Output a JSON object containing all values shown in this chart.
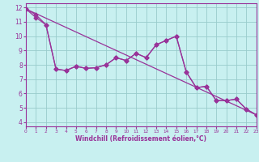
{
  "xlabel": "Windchill (Refroidissement éolien,°C)",
  "bg_color": "#c8f0f0",
  "line_color": "#993399",
  "grid_color": "#99cccc",
  "x_ticks": [
    0,
    1,
    2,
    3,
    4,
    5,
    6,
    7,
    8,
    9,
    10,
    11,
    12,
    13,
    14,
    15,
    16,
    17,
    18,
    19,
    20,
    21,
    22,
    23
  ],
  "y_ticks": [
    4,
    5,
    6,
    7,
    8,
    9,
    10,
    11,
    12
  ],
  "xlim": [
    0,
    23
  ],
  "ylim": [
    3.7,
    12.3
  ],
  "curve1_x": [
    0,
    1,
    2,
    3,
    4,
    5,
    6,
    7,
    8,
    9,
    10,
    11,
    12,
    13,
    14,
    15,
    16,
    17,
    18,
    19,
    20,
    21,
    22,
    23
  ],
  "curve1_y": [
    11.9,
    11.5,
    10.8,
    7.7,
    7.6,
    7.9,
    7.75,
    7.8,
    8.0,
    8.5,
    8.3,
    8.8,
    8.5,
    9.4,
    9.7,
    10.0,
    7.5,
    6.4,
    6.5,
    5.5,
    5.5,
    5.6,
    4.9,
    4.5
  ],
  "curve2_x": [
    0,
    1,
    2,
    3,
    4,
    5,
    6,
    7,
    8,
    9,
    10,
    11,
    12,
    13,
    14,
    15,
    16,
    17,
    18,
    19,
    20,
    21,
    22,
    23
  ],
  "curve2_y": [
    11.9,
    11.3,
    10.8,
    7.7,
    7.6,
    7.9,
    7.75,
    7.8,
    8.0,
    8.5,
    8.3,
    8.8,
    8.5,
    9.4,
    9.7,
    10.0,
    7.5,
    6.4,
    6.5,
    5.5,
    5.5,
    5.6,
    4.9,
    4.5
  ],
  "trend_x": [
    0,
    23
  ],
  "trend_y": [
    11.9,
    4.5
  ],
  "marker": "D",
  "markersize": 2.5,
  "linewidth": 0.9
}
